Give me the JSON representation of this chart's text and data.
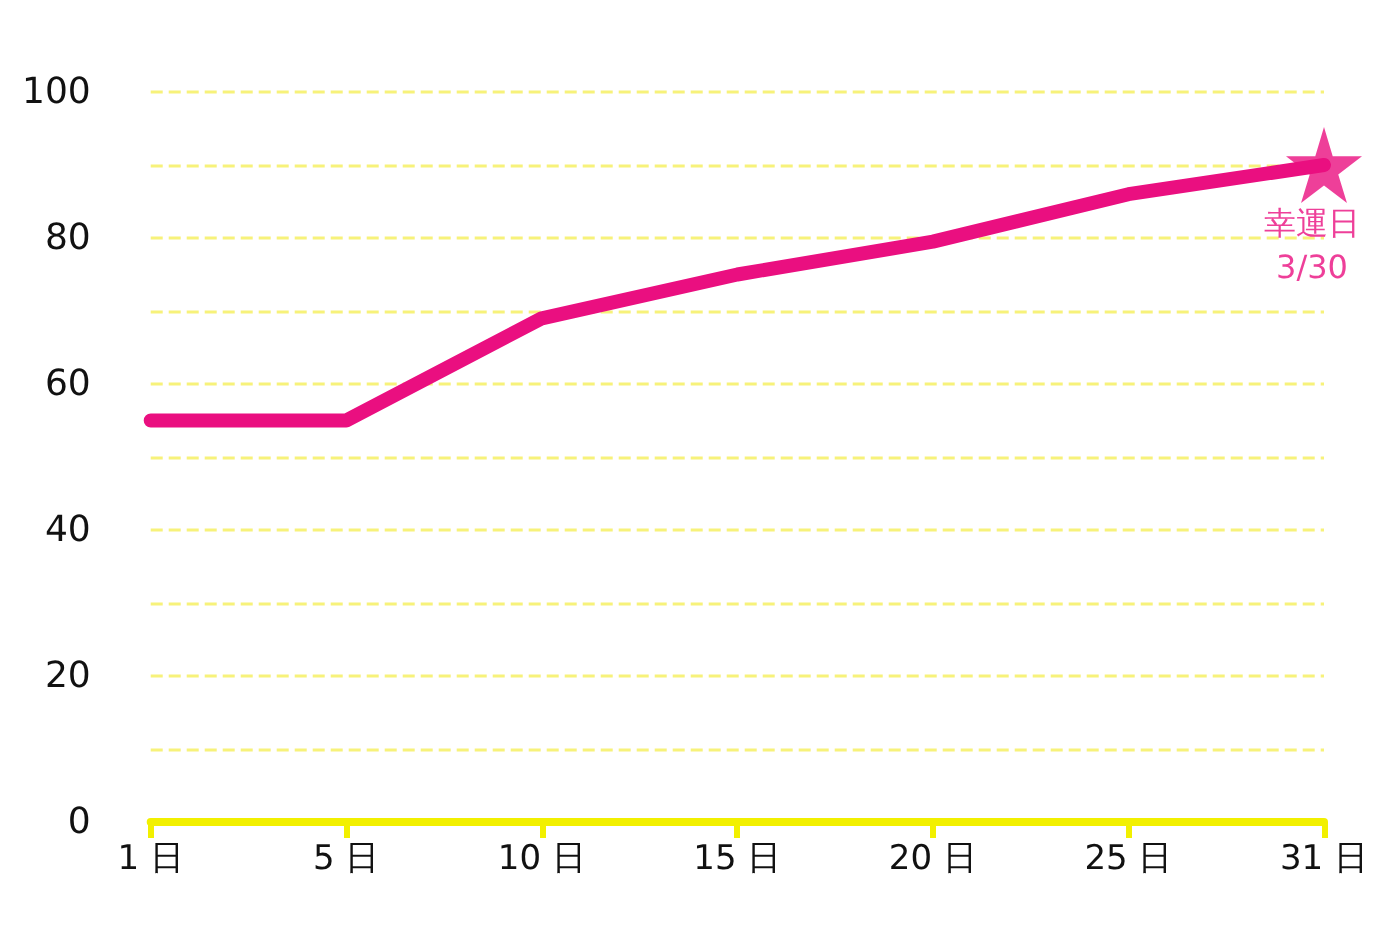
{
  "chart_data": {
    "type": "line",
    "categories": [
      "1 日",
      "5 日",
      "10 日",
      "15 日",
      "20 日",
      "25 日",
      "31 日"
    ],
    "series": [
      {
        "color": "#ea0f80",
        "values": [
          55,
          55,
          69,
          75,
          79.5,
          86,
          90
        ]
      },
      {
        "type": "scatter",
        "marker": "star",
        "color": "#ea0f80",
        "x": [
          "31 日"
        ],
        "values": [
          90
        ]
      }
    ],
    "ylim": [
      0,
      100
    ],
    "yticks": [
      0,
      {
        "value": 10,
        "label": null
      },
      20,
      {
        "value": 30,
        "label": null
      },
      40,
      {
        "value": 50,
        "label": null
      },
      60,
      {
        "value": 70,
        "label": null
      },
      80,
      {
        "value": 90,
        "label": null
      },
      100
    ],
    "grid": "y",
    "marker": "none",
    "line_style": "solid",
    "annotations": [
      {
        "text": "幸運日\n3/30",
        "x": "31 日",
        "y": 90
      }
    ]
  }
}
